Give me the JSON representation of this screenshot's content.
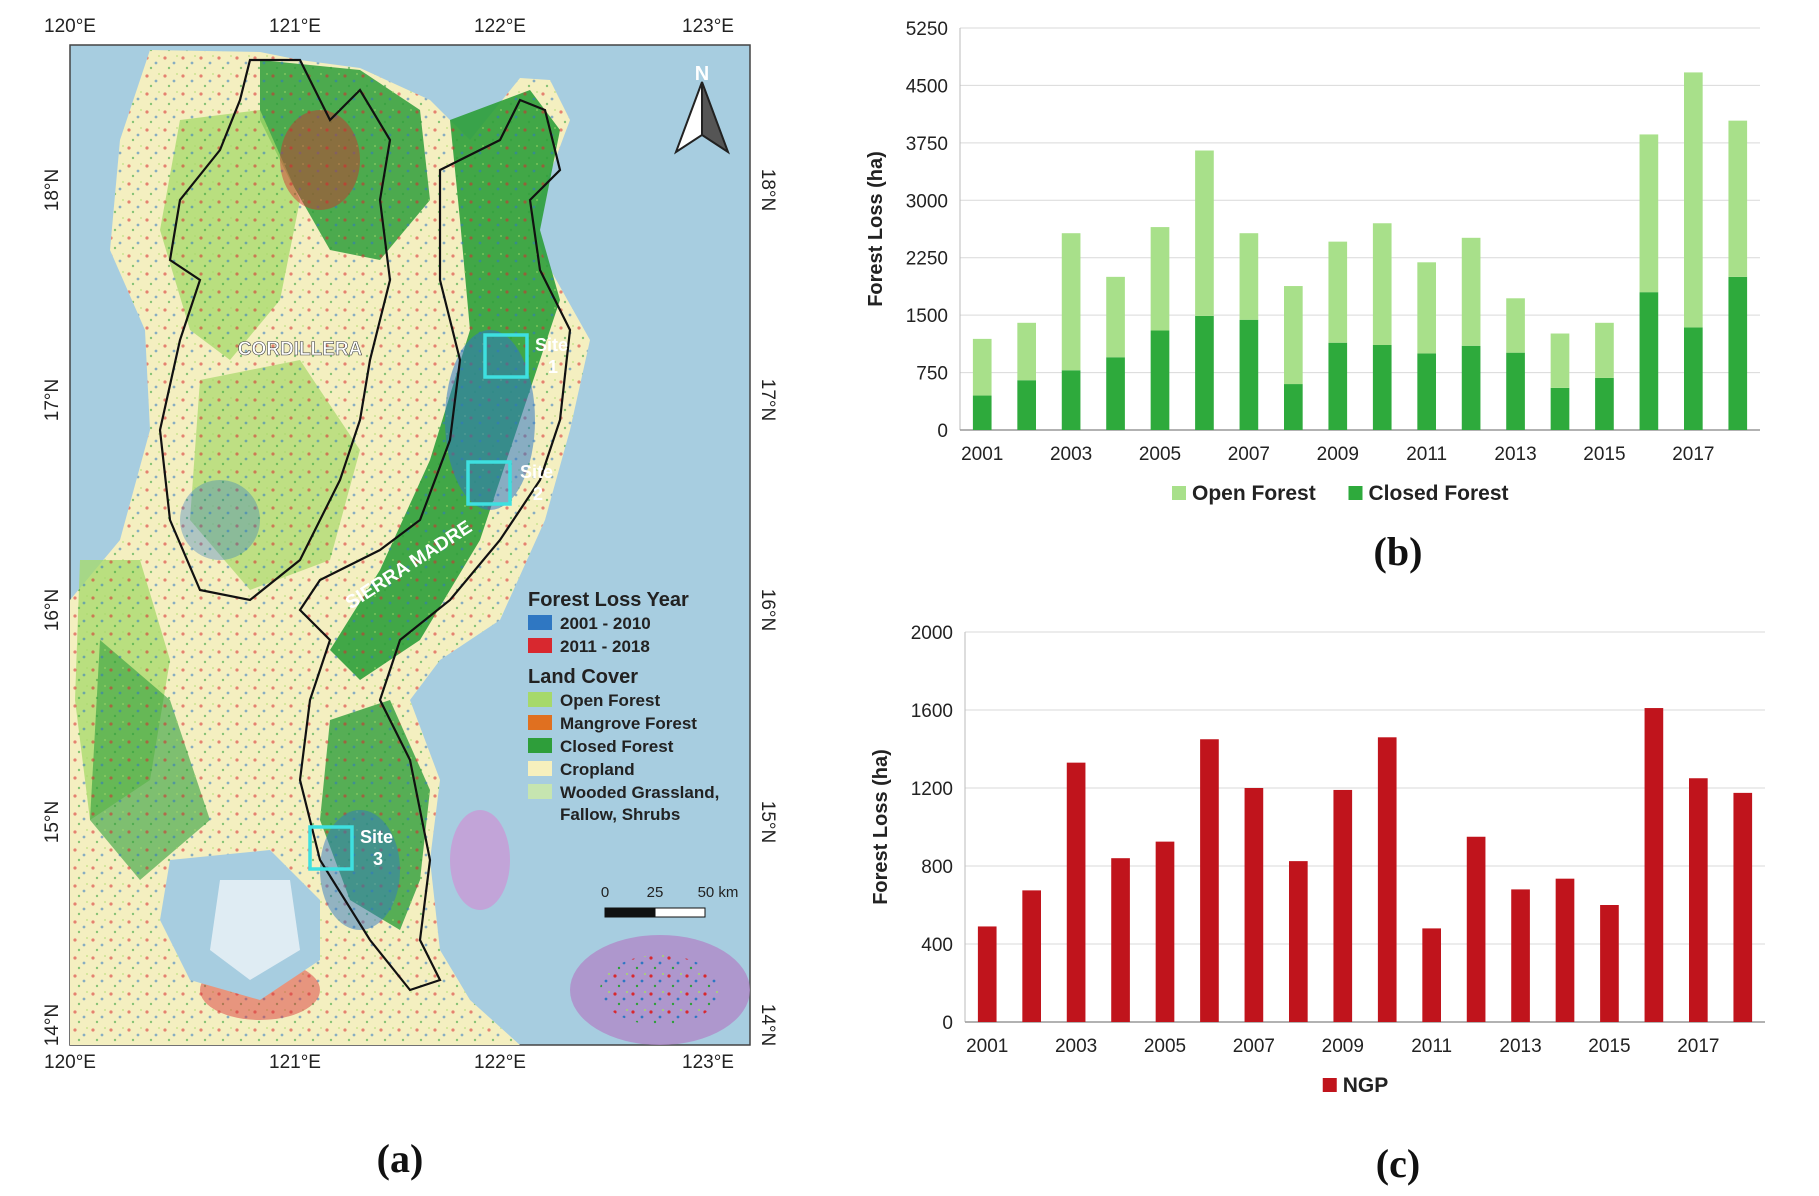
{
  "map_panel": {
    "caption": "(a)",
    "lon_labels": [
      "120°E",
      "121°E",
      "122°E",
      "123°E"
    ],
    "lat_labels_left": [
      "18°N",
      "17°N",
      "16°N",
      "15°N",
      "14°N"
    ],
    "lat_labels_right": [
      "18°N",
      "17°N",
      "16°N",
      "15°N",
      "14°N"
    ],
    "north_label": "N",
    "region_labels": {
      "cordillera": "CORDILLERA",
      "sierra_madre": "SIERRA MADRE"
    },
    "sites": [
      {
        "name": "Site",
        "number": "1"
      },
      {
        "name": "Site",
        "number": "2"
      },
      {
        "name": "Site",
        "number": "3"
      }
    ],
    "legend": {
      "loss_title": "Forest Loss Year",
      "loss_items": [
        {
          "label": "2001 - 2010",
          "color": "#2f77c2"
        },
        {
          "label": "2011 - 2018",
          "color": "#d8282f"
        }
      ],
      "cover_title": "Land Cover",
      "cover_items": [
        {
          "label": "Open Forest",
          "color": "#a6d96a"
        },
        {
          "label": "Mangrove Forest",
          "color": "#e07020"
        },
        {
          "label": "Closed Forest",
          "color": "#2e9e3a"
        },
        {
          "label": "Cropland",
          "color": "#f6f0bd"
        },
        {
          "label": "Wooded Grassland,",
          "label2": "Fallow, Shrubs",
          "color": "#c6e5b0"
        }
      ]
    },
    "scale_bar": {
      "ticks": [
        "0",
        "25",
        "50 km"
      ]
    },
    "colors": {
      "sea": "#a7cde0",
      "boundary": "#111111",
      "site_box": "#3ee0e0"
    }
  },
  "chart_data": [
    {
      "id": "b",
      "caption": "(b)",
      "type": "bar",
      "stacked": true,
      "categories": [
        "2001",
        "2002",
        "2003",
        "2004",
        "2005",
        "2006",
        "2007",
        "2008",
        "2009",
        "2010",
        "2011",
        "2012",
        "2013",
        "2014",
        "2015",
        "2016",
        "2017",
        "2018"
      ],
      "x_tick_labels": [
        "2001",
        "2003",
        "2005",
        "2007",
        "2009",
        "2011",
        "2013",
        "2015",
        "2017"
      ],
      "series": [
        {
          "name": "Closed Forest",
          "color": "#2eaa3c",
          "values": [
            450,
            650,
            780,
            950,
            1300,
            1490,
            1440,
            600,
            1140,
            1110,
            1000,
            1100,
            1010,
            550,
            680,
            1800,
            1340,
            2000
          ]
        },
        {
          "name": "Open Forest",
          "color": "#a8e08a",
          "totals": [
            1190,
            1400,
            2570,
            2000,
            2650,
            3650,
            2570,
            1880,
            2460,
            2700,
            2190,
            2510,
            1720,
            1260,
            1400,
            3860,
            4670,
            4040
          ],
          "values": [
            740,
            750,
            1790,
            1050,
            1350,
            2160,
            1130,
            1280,
            1320,
            1590,
            1190,
            1410,
            710,
            710,
            720,
            2060,
            3330,
            2040
          ]
        }
      ],
      "legend": [
        "Open Forest",
        "Closed Forest"
      ],
      "title": "",
      "xlabel": "",
      "ylabel": "Forest Loss (ha)",
      "ylim": [
        0,
        5250
      ],
      "yticks": [
        "0",
        "750",
        "1500",
        "2250",
        "3000",
        "3750",
        "4500",
        "5250"
      ],
      "grid": true
    },
    {
      "id": "c",
      "caption": "(c)",
      "type": "bar",
      "categories": [
        "2001",
        "2002",
        "2003",
        "2004",
        "2005",
        "2006",
        "2007",
        "2008",
        "2009",
        "2010",
        "2011",
        "2012",
        "2013",
        "2014",
        "2015",
        "2016",
        "2017",
        "2018"
      ],
      "x_tick_labels": [
        "2001",
        "2003",
        "2005",
        "2007",
        "2009",
        "2011",
        "2013",
        "2015",
        "2017"
      ],
      "series": [
        {
          "name": "NGP",
          "color": "#c0141c",
          "values": [
            490,
            675,
            1330,
            840,
            925,
            1450,
            1200,
            825,
            1190,
            1460,
            480,
            950,
            680,
            735,
            600,
            1610,
            1250,
            1175
          ]
        }
      ],
      "legend": [
        "NGP"
      ],
      "title": "",
      "xlabel": "",
      "ylabel": "Forest Loss (ha)",
      "ylim": [
        0,
        2000
      ],
      "yticks": [
        "0",
        "400",
        "800",
        "1200",
        "1600",
        "2000"
      ],
      "grid": true
    }
  ]
}
